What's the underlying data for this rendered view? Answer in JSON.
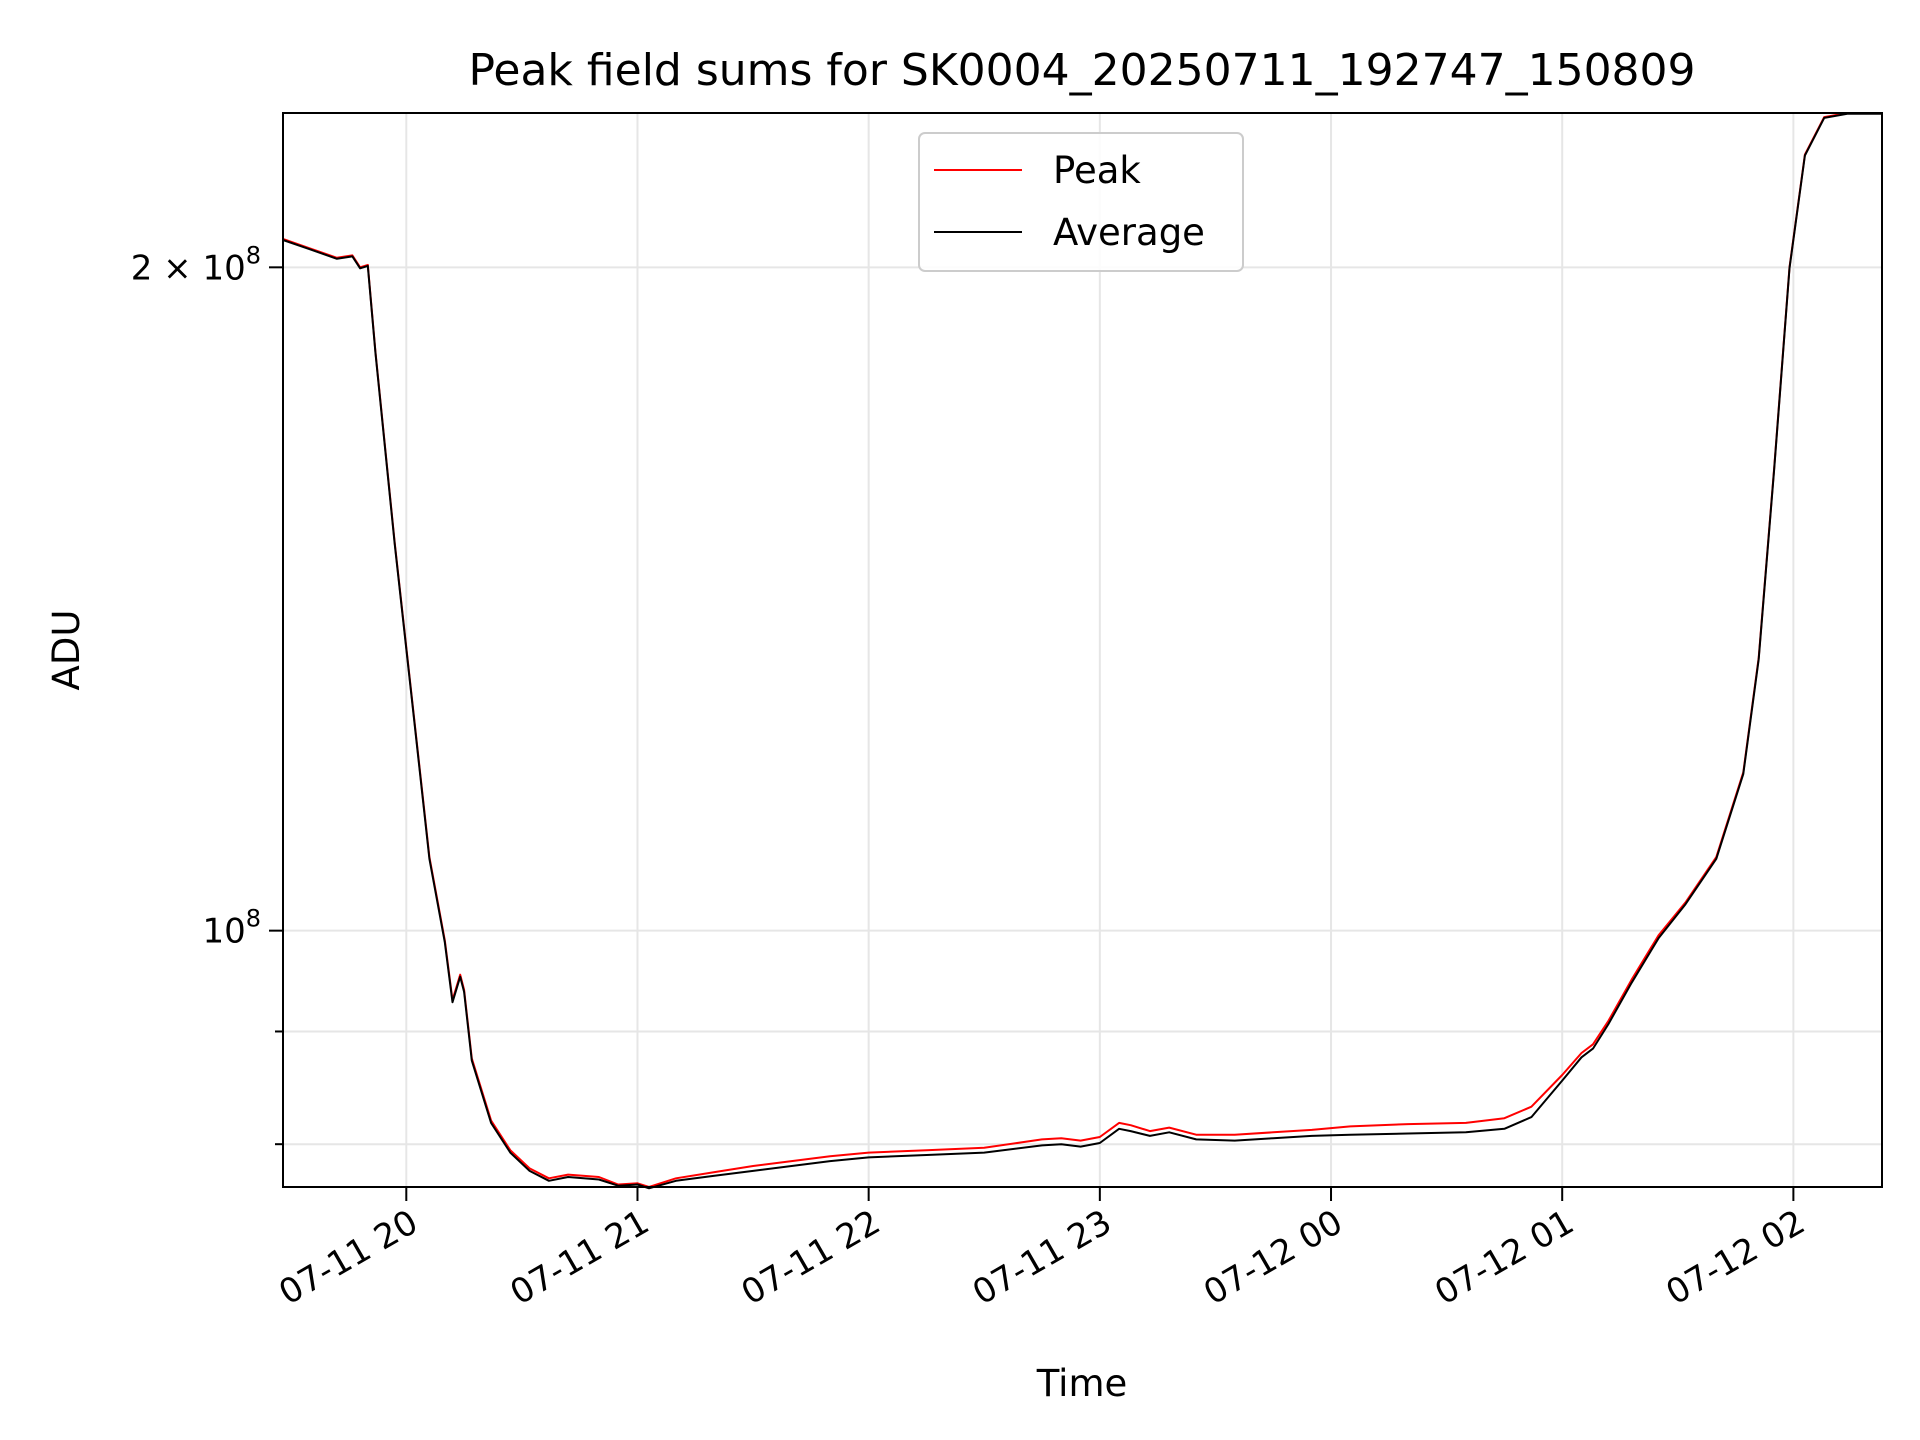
{
  "chart_data": {
    "type": "line",
    "title": "Peak field sums for SK0004_20250711_192747_150809",
    "xlabel": "Time",
    "ylabel": "ADU",
    "x_axis": {
      "type": "datetime",
      "range": [
        "2025-07-11 19:28",
        "2025-07-12 02:23"
      ],
      "ticks": [
        {
          "value": "2025-07-11 20:00",
          "label": "07-11 20"
        },
        {
          "value": "2025-07-11 21:00",
          "label": "07-11 21"
        },
        {
          "value": "2025-07-11 22:00",
          "label": "07-11 22"
        },
        {
          "value": "2025-07-11 23:00",
          "label": "07-11 23"
        },
        {
          "value": "2025-07-12 00:00",
          "label": "07-12 00"
        },
        {
          "value": "2025-07-12 01:00",
          "label": "07-12 01"
        },
        {
          "value": "2025-07-12 02:00",
          "label": "07-12 02"
        }
      ]
    },
    "y_axis": {
      "scale": "log",
      "range": [
        76500000,
        235000000
      ],
      "major_ticks": [
        {
          "value": 100000000,
          "base": "10",
          "exp": "8"
        },
        {
          "value": 200000000,
          "base": "2 × 10",
          "exp": "8"
        }
      ],
      "minor_ticks": [
        80000000,
        90000000
      ]
    },
    "grid": true,
    "legend": {
      "position": "top-center"
    },
    "series": [
      {
        "name": "Peak",
        "color": "#ff0000",
        "x": [
          "2025-07-11 19:28",
          "2025-07-11 19:35",
          "2025-07-11 19:42",
          "2025-07-11 19:46",
          "2025-07-11 19:48",
          "2025-07-11 19:50",
          "2025-07-11 19:52",
          "2025-07-11 19:57",
          "2025-07-11 20:02",
          "2025-07-11 20:06",
          "2025-07-11 20:10",
          "2025-07-11 20:12",
          "2025-07-11 20:14",
          "2025-07-11 20:15",
          "2025-07-11 20:17",
          "2025-07-11 20:22",
          "2025-07-11 20:27",
          "2025-07-11 20:32",
          "2025-07-11 20:37",
          "2025-07-11 20:42",
          "2025-07-11 20:50",
          "2025-07-11 20:55",
          "2025-07-11 21:00",
          "2025-07-11 21:03",
          "2025-07-11 21:10",
          "2025-07-11 21:20",
          "2025-07-11 21:30",
          "2025-07-11 21:40",
          "2025-07-11 21:50",
          "2025-07-11 22:00",
          "2025-07-11 22:15",
          "2025-07-11 22:30",
          "2025-07-11 22:45",
          "2025-07-11 22:50",
          "2025-07-11 22:55",
          "2025-07-11 23:00",
          "2025-07-11 23:05",
          "2025-07-11 23:08",
          "2025-07-11 23:13",
          "2025-07-11 23:18",
          "2025-07-11 23:25",
          "2025-07-11 23:35",
          "2025-07-11 23:45",
          "2025-07-11 23:55",
          "2025-07-12 00:05",
          "2025-07-12 00:20",
          "2025-07-12 00:35",
          "2025-07-12 00:45",
          "2025-07-12 00:52",
          "2025-07-12 01:00",
          "2025-07-12 01:05",
          "2025-07-12 01:08",
          "2025-07-12 01:12",
          "2025-07-12 01:18",
          "2025-07-12 01:25",
          "2025-07-12 01:32",
          "2025-07-12 01:40",
          "2025-07-12 01:47",
          "2025-07-12 01:51",
          "2025-07-12 01:55",
          "2025-07-12 01:59",
          "2025-07-12 02:03",
          "2025-07-12 02:08",
          "2025-07-12 02:14",
          "2025-07-12 02:23"
        ],
        "y": [
          206000000,
          204000000,
          202000000,
          202500000,
          200000000,
          200500000,
          183000000,
          150000000,
          125000000,
          108000000,
          99000000,
          93000000,
          95500000,
          94000000,
          87500000,
          82000000,
          79500000,
          78000000,
          77200000,
          77500000,
          77300000,
          76700000,
          76800000,
          76500000,
          77200000,
          77700000,
          78200000,
          78600000,
          79000000,
          79300000,
          79500000,
          79700000,
          80400000,
          80500000,
          80300000,
          80600000,
          81800000,
          81600000,
          81100000,
          81400000,
          80800000,
          80800000,
          81000000,
          81200000,
          81500000,
          81700000,
          81800000,
          82200000,
          83200000,
          86000000,
          88000000,
          88800000,
          91000000,
          95000000,
          99500000,
          103000000,
          108000000,
          118000000,
          133000000,
          162000000,
          200000000,
          225000000,
          234000000,
          235000000,
          235000000
        ]
      },
      {
        "name": "Average",
        "color": "#000000",
        "x": [
          "2025-07-11 19:28",
          "2025-07-11 19:35",
          "2025-07-11 19:42",
          "2025-07-11 19:46",
          "2025-07-11 19:48",
          "2025-07-11 19:50",
          "2025-07-11 19:52",
          "2025-07-11 19:57",
          "2025-07-11 20:02",
          "2025-07-11 20:06",
          "2025-07-11 20:10",
          "2025-07-11 20:12",
          "2025-07-11 20:14",
          "2025-07-11 20:15",
          "2025-07-11 20:17",
          "2025-07-11 20:22",
          "2025-07-11 20:27",
          "2025-07-11 20:32",
          "2025-07-11 20:37",
          "2025-07-11 20:42",
          "2025-07-11 20:50",
          "2025-07-11 20:55",
          "2025-07-11 21:00",
          "2025-07-11 21:03",
          "2025-07-11 21:10",
          "2025-07-11 21:20",
          "2025-07-11 21:30",
          "2025-07-11 21:40",
          "2025-07-11 21:50",
          "2025-07-11 22:00",
          "2025-07-11 22:15",
          "2025-07-11 22:30",
          "2025-07-11 22:45",
          "2025-07-11 22:50",
          "2025-07-11 22:55",
          "2025-07-11 23:00",
          "2025-07-11 23:05",
          "2025-07-11 23:08",
          "2025-07-11 23:13",
          "2025-07-11 23:18",
          "2025-07-11 23:25",
          "2025-07-11 23:35",
          "2025-07-11 23:45",
          "2025-07-11 23:55",
          "2025-07-12 00:05",
          "2025-07-12 00:20",
          "2025-07-12 00:35",
          "2025-07-12 00:45",
          "2025-07-12 00:52",
          "2025-07-12 01:00",
          "2025-07-12 01:05",
          "2025-07-12 01:08",
          "2025-07-12 01:12",
          "2025-07-12 01:18",
          "2025-07-12 01:25",
          "2025-07-12 01:32",
          "2025-07-12 01:40",
          "2025-07-12 01:47",
          "2025-07-12 01:51",
          "2025-07-12 01:55",
          "2025-07-12 01:59",
          "2025-07-12 02:03",
          "2025-07-12 02:08",
          "2025-07-12 02:14",
          "2025-07-12 02:23"
        ],
        "y": [
          205800000,
          203800000,
          201800000,
          202300000,
          199800000,
          200300000,
          182800000,
          149800000,
          124800000,
          107800000,
          98800000,
          92800000,
          95300000,
          93800000,
          87300000,
          81800000,
          79300000,
          77800000,
          77000000,
          77300000,
          77100000,
          76600000,
          76700000,
          76400000,
          77000000,
          77400000,
          77800000,
          78200000,
          78600000,
          78900000,
          79100000,
          79300000,
          79900000,
          80000000,
          79800000,
          80100000,
          81300000,
          81100000,
          80700000,
          81000000,
          80400000,
          80300000,
          80500000,
          80700000,
          80800000,
          80900000,
          81000000,
          81300000,
          82300000,
          85500000,
          87600000,
          88400000,
          90700000,
          94700000,
          99200000,
          102800000,
          107800000,
          117800000,
          132800000,
          161800000,
          199800000,
          224800000,
          233800000,
          234800000,
          234800000
        ]
      }
    ]
  }
}
